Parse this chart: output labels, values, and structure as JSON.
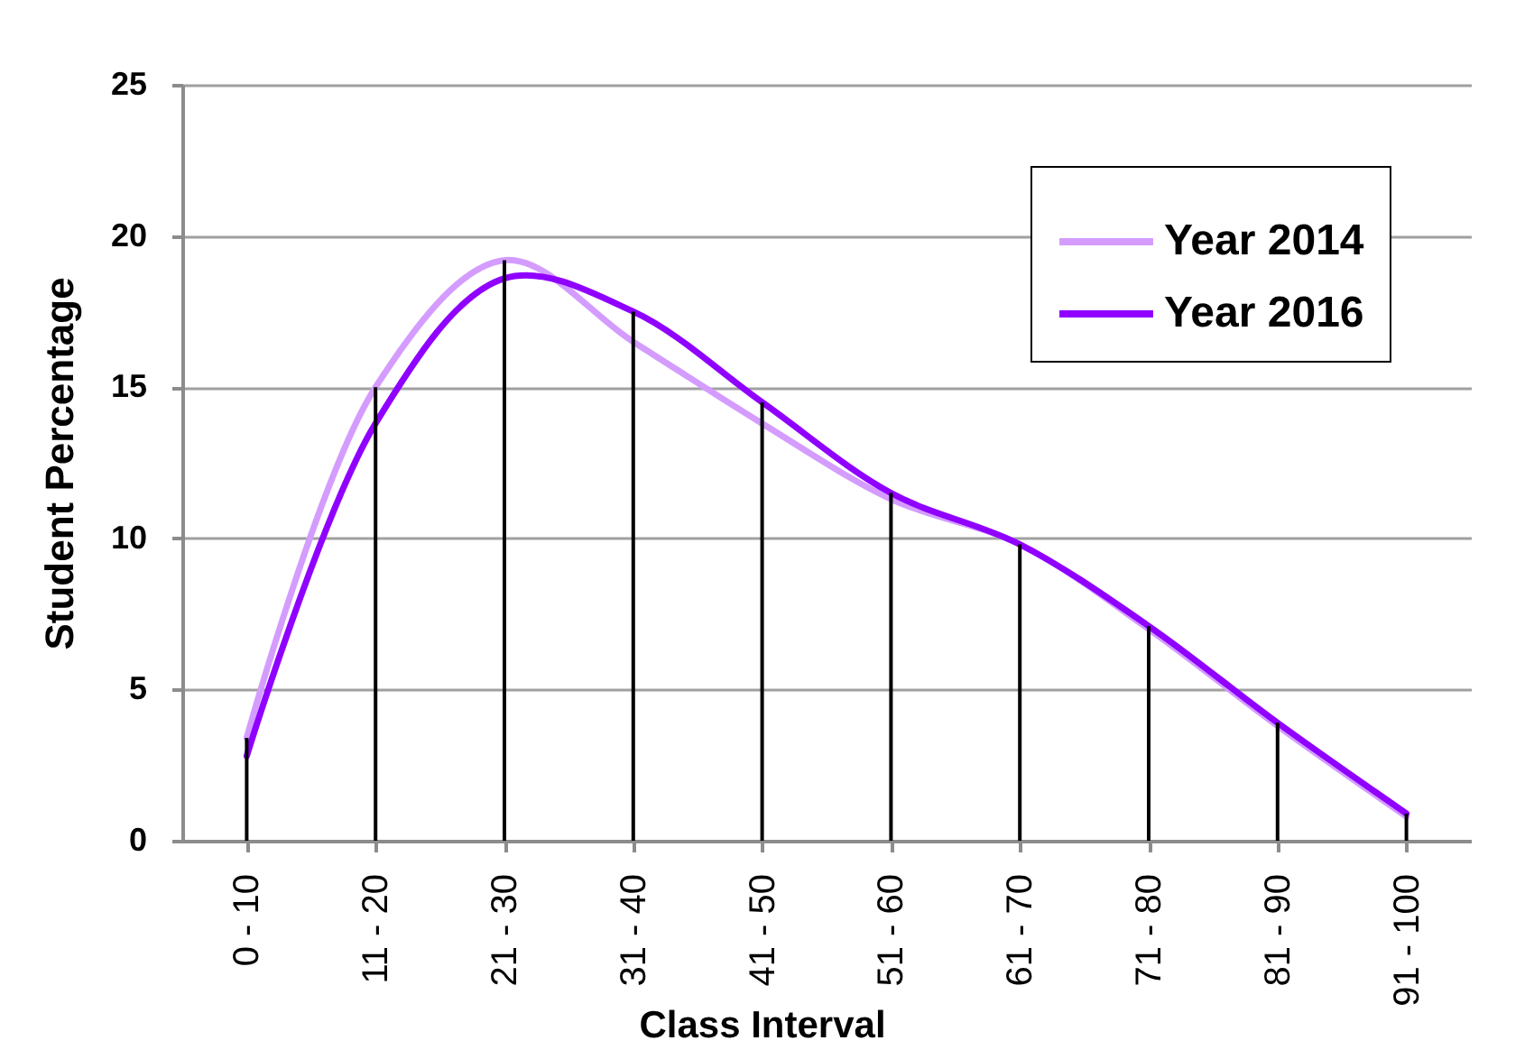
{
  "chart_data": {
    "type": "line",
    "xlabel": "Class Interval",
    "ylabel": "Student Percentage",
    "categories": [
      "0 - 10",
      "11 - 20",
      "21 - 30",
      "31 - 40",
      "41 - 50",
      "51 - 60",
      "61 - 70",
      "71 - 80",
      "81 - 90",
      "91 - 100"
    ],
    "series": [
      {
        "name": "Year 2014",
        "color": "#d49cff",
        "values": [
          3.4,
          15.0,
          19.2,
          16.5,
          13.8,
          11.3,
          9.8,
          7.0,
          3.8,
          0.8
        ]
      },
      {
        "name": "Year 2016",
        "color": "#9000ff",
        "values": [
          2.8,
          13.8,
          18.6,
          17.5,
          14.5,
          11.5,
          9.8,
          7.1,
          3.9,
          0.9
        ]
      },
      {
        "type": "bar",
        "color": "#000000",
        "values": [
          3.4,
          15.0,
          19.2,
          17.5,
          14.5,
          11.5,
          9.8,
          7.1,
          3.9,
          0.9
        ]
      }
    ],
    "ylim": [
      0,
      25
    ],
    "yticks": [
      0,
      5,
      10,
      15,
      20,
      25
    ],
    "grid": "y",
    "legend": "top right",
    "line_style": "solid"
  }
}
